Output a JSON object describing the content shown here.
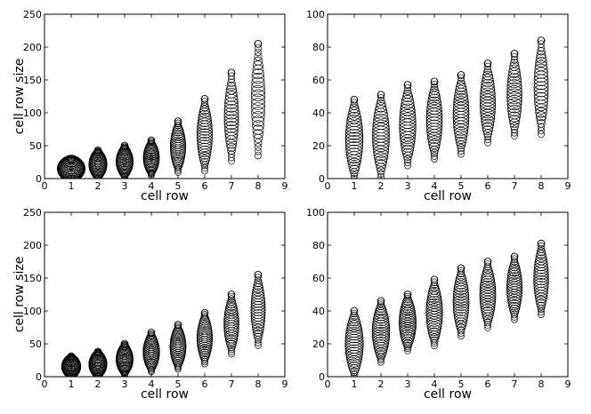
{
  "chart_data": [
    {
      "type": "scatter",
      "panel": "top-left",
      "xlabel": "cell row",
      "ylabel": "cell row size",
      "xlim": [
        0,
        9
      ],
      "ylim": [
        0,
        250
      ],
      "xticks": [
        "0",
        "1",
        "2",
        "3",
        "4",
        "5",
        "6",
        "7",
        "8",
        "9"
      ],
      "yticks": [
        "0",
        "50",
        "100",
        "150",
        "200",
        "250"
      ],
      "series": [
        {
          "x": 1,
          "min": 0,
          "max": 30,
          "max_radius_data_x": 0.52
        },
        {
          "x": 2,
          "min": 0,
          "max": 43,
          "max_radius_data_x": 0.34
        },
        {
          "x": 3,
          "min": 2,
          "max": 50,
          "max_radius_data_x": 0.32
        },
        {
          "x": 4,
          "min": 5,
          "max": 58,
          "max_radius_data_x": 0.3
        },
        {
          "x": 5,
          "min": 10,
          "max": 87,
          "max_radius_data_x": 0.29
        },
        {
          "x": 6,
          "min": 12,
          "max": 121,
          "max_radius_data_x": 0.29
        },
        {
          "x": 7,
          "min": 27,
          "max": 161,
          "max_radius_data_x": 0.27
        },
        {
          "x": 8,
          "min": 35,
          "max": 205,
          "max_radius_data_x": 0.26
        }
      ]
    },
    {
      "type": "scatter",
      "panel": "top-right",
      "xlabel": "cell row",
      "ylabel": "",
      "xlim": [
        0,
        9
      ],
      "ylim": [
        0,
        100
      ],
      "xticks": [
        "0",
        "1",
        "2",
        "3",
        "4",
        "5",
        "6",
        "7",
        "8",
        "9"
      ],
      "yticks": [
        "0",
        "20",
        "40",
        "60",
        "80",
        "100"
      ],
      "series": [
        {
          "x": 1,
          "min": 0,
          "max": 48,
          "max_radius_data_x": 0.33
        },
        {
          "x": 2,
          "min": 1,
          "max": 51,
          "max_radius_data_x": 0.32
        },
        {
          "x": 3,
          "min": 8,
          "max": 57,
          "max_radius_data_x": 0.31
        },
        {
          "x": 4,
          "min": 12,
          "max": 59,
          "max_radius_data_x": 0.3
        },
        {
          "x": 5,
          "min": 15,
          "max": 63,
          "max_radius_data_x": 0.3
        },
        {
          "x": 6,
          "min": 22,
          "max": 70,
          "max_radius_data_x": 0.29
        },
        {
          "x": 7,
          "min": 26,
          "max": 76,
          "max_radius_data_x": 0.28
        },
        {
          "x": 8,
          "min": 27,
          "max": 84,
          "max_radius_data_x": 0.27
        }
      ]
    },
    {
      "type": "scatter",
      "panel": "bottom-left",
      "xlabel": "cell row",
      "ylabel": "cell row size",
      "xlim": [
        0,
        9
      ],
      "ylim": [
        0,
        250
      ],
      "xticks": [
        "0",
        "1",
        "2",
        "3",
        "4",
        "5",
        "6",
        "7",
        "8",
        "9"
      ],
      "yticks": [
        "0",
        "50",
        "100",
        "150",
        "200",
        "250"
      ],
      "series": [
        {
          "x": 1,
          "min": 0,
          "max": 31,
          "max_radius_data_x": 0.36
        },
        {
          "x": 2,
          "min": 0,
          "max": 38,
          "max_radius_data_x": 0.34
        },
        {
          "x": 3,
          "min": 3,
          "max": 50,
          "max_radius_data_x": 0.32
        },
        {
          "x": 4,
          "min": 8,
          "max": 67,
          "max_radius_data_x": 0.31
        },
        {
          "x": 5,
          "min": 12,
          "max": 79,
          "max_radius_data_x": 0.3
        },
        {
          "x": 6,
          "min": 20,
          "max": 97,
          "max_radius_data_x": 0.29
        },
        {
          "x": 7,
          "min": 35,
          "max": 125,
          "max_radius_data_x": 0.28
        },
        {
          "x": 8,
          "min": 48,
          "max": 155,
          "max_radius_data_x": 0.27
        }
      ]
    },
    {
      "type": "scatter",
      "panel": "bottom-right",
      "xlabel": "cell row",
      "ylabel": "",
      "xlim": [
        0,
        9
      ],
      "ylim": [
        0,
        100
      ],
      "xticks": [
        "0",
        "1",
        "2",
        "3",
        "4",
        "5",
        "6",
        "7",
        "8",
        "9"
      ],
      "yticks": [
        "0",
        "20",
        "40",
        "60",
        "80",
        "100"
      ],
      "series": [
        {
          "x": 1,
          "min": 0,
          "max": 40,
          "max_radius_data_x": 0.34
        },
        {
          "x": 2,
          "min": 9,
          "max": 46,
          "max_radius_data_x": 0.33
        },
        {
          "x": 3,
          "min": 16,
          "max": 50,
          "max_radius_data_x": 0.32
        },
        {
          "x": 4,
          "min": 19,
          "max": 59,
          "max_radius_data_x": 0.31
        },
        {
          "x": 5,
          "min": 25,
          "max": 66,
          "max_radius_data_x": 0.3
        },
        {
          "x": 6,
          "min": 30,
          "max": 70,
          "max_radius_data_x": 0.3
        },
        {
          "x": 7,
          "min": 35,
          "max": 73,
          "max_radius_data_x": 0.29
        },
        {
          "x": 8,
          "min": 38,
          "max": 81,
          "max_radius_data_x": 0.28
        }
      ]
    }
  ]
}
